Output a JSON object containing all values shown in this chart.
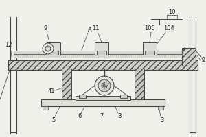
{
  "bg_color": "#f0f0eb",
  "line_color": "#444444",
  "light_fill": "#e8e8e4",
  "hatch_fill": "#d8d8d4",
  "figsize": [
    3.0,
    2.0
  ],
  "dpi": 100,
  "label_fs": 6.0
}
